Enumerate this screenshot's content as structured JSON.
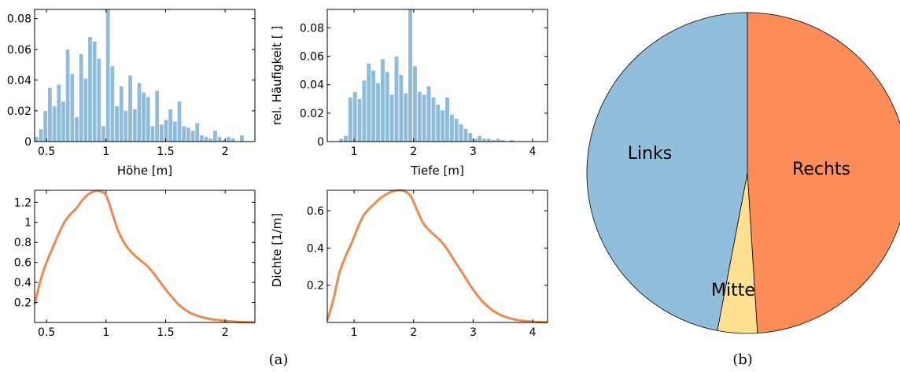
{
  "captions": {
    "a": "(a)",
    "b": "(b)"
  },
  "chart_data": [
    {
      "id": "hist-hoehe",
      "type": "bar",
      "xlabel": "Höhe [m]",
      "ylabel": "",
      "xlim": [
        0.4,
        2.25
      ],
      "ylim": [
        0,
        0.086
      ],
      "xticks": [
        0.5,
        1,
        1.5,
        2
      ],
      "xtick_labels": [
        "0.5",
        "1",
        "1.5",
        "2"
      ],
      "yticks": [
        0,
        0.02,
        0.04,
        0.06,
        0.08
      ],
      "ytick_labels": [
        "0",
        "0.02",
        "0.04",
        "0.06",
        "0.08"
      ],
      "bin_start": 0.4,
      "bin_width": 0.0375,
      "values": [
        0.003,
        0.008,
        0.02,
        0.035,
        0.023,
        0.037,
        0.026,
        0.06,
        0.044,
        0.016,
        0.057,
        0.041,
        0.068,
        0.065,
        0.054,
        0.01,
        0.088,
        0.049,
        0.023,
        0.036,
        0.02,
        0.043,
        0.021,
        0.038,
        0.032,
        0.029,
        0.01,
        0.033,
        0.011,
        0.014,
        0.021,
        0.013,
        0.026,
        0.01,
        0.009,
        0.007,
        0.012,
        0.004,
        0.003,
        0.002,
        0.007,
        0.003,
        0.001,
        0.003,
        0.002,
        0.0,
        0.004,
        0.0,
        0.0,
        0.0
      ],
      "color": "#8fbcdb"
    },
    {
      "id": "hist-tiefe",
      "type": "bar",
      "xlabel": "Tiefe [m]",
      "ylabel": "rel. Häufigkeit [ ]",
      "xlim": [
        0.55,
        4.25
      ],
      "ylim": [
        0,
        0.093
      ],
      "xticks": [
        1,
        2,
        3,
        4
      ],
      "xtick_labels": [
        "1",
        "2",
        "3",
        "4"
      ],
      "yticks": [
        0,
        0.02,
        0.04,
        0.06,
        0.08
      ],
      "ytick_labels": [
        "0",
        "0.02",
        "0.04",
        "0.06",
        "0.08"
      ],
      "bin_start": 0.75,
      "bin_width": 0.0775,
      "values": [
        0.002,
        0.004,
        0.031,
        0.035,
        0.03,
        0.043,
        0.055,
        0.05,
        0.041,
        0.058,
        0.049,
        0.033,
        0.06,
        0.047,
        0.034,
        0.095,
        0.053,
        0.035,
        0.033,
        0.039,
        0.031,
        0.026,
        0.022,
        0.031,
        0.019,
        0.016,
        0.012,
        0.009,
        0.006,
        0.002,
        0.004,
        0.002,
        0.002,
        0.001,
        0.002,
        0.001,
        0.0,
        0.001
      ],
      "color": "#8fbcdb"
    },
    {
      "id": "dens-hoehe",
      "type": "line",
      "xlabel": "",
      "ylabel": "",
      "xlim": [
        0.4,
        2.25
      ],
      "ylim": [
        0,
        1.32
      ],
      "xticks": [
        0.5,
        1,
        1.5,
        2
      ],
      "xtick_labels": [
        "0.5",
        "1",
        "1.5",
        "2"
      ],
      "yticks": [
        0.2,
        0.4,
        0.6,
        0.8,
        1,
        1.2
      ],
      "ytick_labels": [
        "0.2",
        "0.4",
        "0.6",
        "0.8",
        "1",
        "1.2"
      ],
      "x": [
        0.4,
        0.45,
        0.5,
        0.55,
        0.6,
        0.65,
        0.7,
        0.75,
        0.8,
        0.85,
        0.9,
        0.95,
        1.0,
        1.05,
        1.1,
        1.15,
        1.2,
        1.25,
        1.3,
        1.35,
        1.4,
        1.45,
        1.5,
        1.55,
        1.6,
        1.65,
        1.7,
        1.75,
        1.8,
        1.85,
        1.9,
        1.95,
        2.0,
        2.05,
        2.1,
        2.15,
        2.2,
        2.25
      ],
      "y": [
        0.18,
        0.42,
        0.6,
        0.74,
        0.88,
        1.0,
        1.08,
        1.14,
        1.22,
        1.28,
        1.31,
        1.31,
        1.27,
        1.1,
        0.92,
        0.8,
        0.72,
        0.66,
        0.61,
        0.56,
        0.49,
        0.41,
        0.33,
        0.26,
        0.19,
        0.14,
        0.1,
        0.075,
        0.055,
        0.04,
        0.03,
        0.022,
        0.016,
        0.01,
        0.006,
        0.003,
        0.002,
        0.001
      ],
      "color": "#f0884f"
    },
    {
      "id": "dens-tiefe",
      "type": "line",
      "xlabel": "",
      "ylabel": "Dichte [1/m]",
      "xlim": [
        0.55,
        4.25
      ],
      "ylim": [
        0,
        0.71
      ],
      "xticks": [
        1,
        2,
        3,
        4
      ],
      "xtick_labels": [
        "1",
        "2",
        "3",
        "4"
      ],
      "yticks": [
        0.2,
        0.4,
        0.6
      ],
      "ytick_labels": [
        "0.2",
        "0.4",
        "0.6"
      ],
      "x": [
        0.55,
        0.65,
        0.75,
        0.85,
        0.95,
        1.05,
        1.15,
        1.25,
        1.35,
        1.45,
        1.55,
        1.65,
        1.75,
        1.85,
        1.95,
        2.05,
        2.15,
        2.25,
        2.35,
        2.45,
        2.55,
        2.65,
        2.75,
        2.85,
        2.95,
        3.05,
        3.15,
        3.25,
        3.35,
        3.5,
        3.65,
        3.8,
        3.95,
        4.1,
        4.25
      ],
      "y": [
        0.01,
        0.12,
        0.26,
        0.35,
        0.42,
        0.5,
        0.57,
        0.61,
        0.64,
        0.67,
        0.69,
        0.705,
        0.71,
        0.705,
        0.68,
        0.61,
        0.54,
        0.5,
        0.47,
        0.44,
        0.4,
        0.35,
        0.3,
        0.25,
        0.2,
        0.155,
        0.115,
        0.085,
        0.06,
        0.035,
        0.02,
        0.01,
        0.005,
        0.002,
        0.001
      ],
      "color": "#f0884f"
    },
    {
      "id": "pie-position",
      "type": "pie",
      "labels": [
        "Rechts",
        "Mitte",
        "Links"
      ],
      "values": [
        0.49,
        0.04,
        0.47
      ],
      "colors": [
        "#fc8d59",
        "#fee090",
        "#91bfdb"
      ],
      "start": "top",
      "direction": "clockwise"
    }
  ]
}
